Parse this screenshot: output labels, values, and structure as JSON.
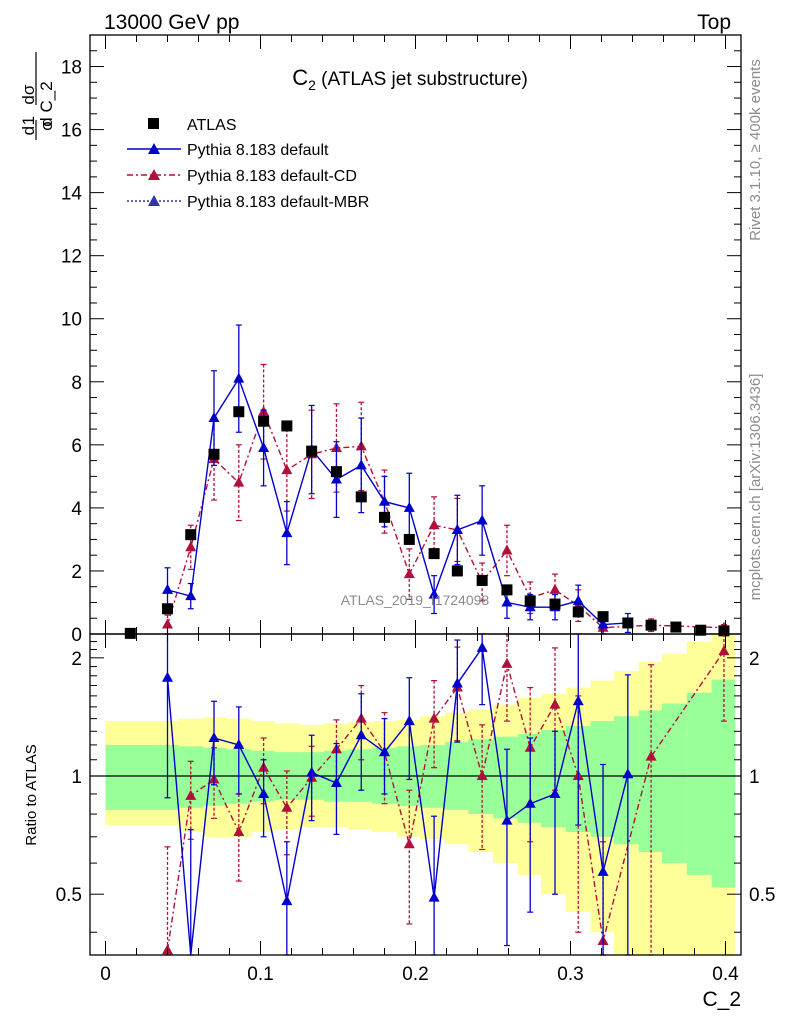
{
  "header": {
    "left": "13000 GeV pp",
    "right": "Top"
  },
  "side_labels": {
    "rivet": "Rivet 3.1.10, ≥ 400k events",
    "mcplots": "mcplots.cern.ch [arXiv:1306.3436]"
  },
  "chart_data": [
    {
      "type": "scatter",
      "title": "C₂ (ATLAS jet substructure)",
      "title_main": "C",
      "title_sub": "2",
      "title_rest": " (ATLAS jet substructure)",
      "ylabel": "1/σ dσ/d C_2",
      "watermark": "ATLAS_2019_I1724098",
      "xlim": [
        -0.01,
        0.41
      ],
      "ylim": [
        0,
        19
      ],
      "y_ticks": [
        0,
        2,
        4,
        6,
        8,
        10,
        12,
        14,
        16,
        18
      ],
      "y_tick_labels": [
        "0",
        "2",
        "4",
        "6",
        "8",
        "10",
        "12",
        "14",
        "16",
        "18"
      ],
      "legend_placement": "top-left",
      "series": [
        {
          "name": "ATLAS",
          "color": "#000000",
          "marker": "square",
          "x": [
            0.016,
            0.04,
            0.055,
            0.07,
            0.086,
            0.102,
            0.117,
            0.133,
            0.149,
            0.165,
            0.18,
            0.196,
            0.212,
            0.227,
            0.243,
            0.259,
            0.274,
            0.29,
            0.305,
            0.321,
            0.337,
            0.352,
            0.368,
            0.384,
            0.399
          ],
          "y": [
            0.02,
            0.8,
            3.15,
            5.7,
            7.05,
            6.75,
            6.6,
            5.8,
            5.15,
            4.35,
            3.7,
            3.0,
            2.55,
            2.0,
            1.7,
            1.4,
            1.05,
            0.95,
            0.7,
            0.55,
            0.35,
            0.28,
            0.22,
            0.12,
            0.1
          ]
        },
        {
          "name": "Pythia 8.183 default",
          "color": "#0000cc",
          "marker": "triangle",
          "line": "solid",
          "x": [
            0.04,
            0.055,
            0.07,
            0.086,
            0.102,
            0.117,
            0.133,
            0.149,
            0.165,
            0.18,
            0.196,
            0.212,
            0.227,
            0.243,
            0.259,
            0.274,
            0.29,
            0.305,
            0.321,
            0.337
          ],
          "y": [
            1.4,
            1.2,
            6.85,
            8.1,
            5.9,
            3.2,
            5.85,
            4.9,
            5.35,
            4.2,
            4.0,
            1.25,
            3.3,
            3.6,
            1.0,
            0.85,
            0.85,
            1.05,
            0.3,
            0.35
          ],
          "err": [
            0.7,
            0.4,
            1.5,
            1.7,
            1.2,
            1.0,
            1.4,
            1.2,
            1.5,
            0.8,
            1.1,
            0.6,
            1.1,
            1.1,
            0.5,
            0.4,
            0.4,
            0.5,
            0.3,
            0.3
          ]
        },
        {
          "name": "Pythia 8.183 default-CD",
          "color": "#b0103a",
          "marker": "triangle",
          "line": "dashdot",
          "x": [
            0.04,
            0.055,
            0.07,
            0.086,
            0.102,
            0.117,
            0.133,
            0.149,
            0.165,
            0.18,
            0.196,
            0.212,
            0.227,
            0.243,
            0.259,
            0.274,
            0.29,
            0.305,
            0.321,
            0.352,
            0.399
          ],
          "y": [
            0.3,
            2.75,
            5.55,
            4.8,
            7.05,
            5.2,
            5.7,
            5.9,
            5.95,
            4.2,
            1.9,
            3.45,
            3.3,
            1.65,
            2.65,
            1.15,
            1.4,
            0.9,
            0.2,
            0.28,
            0.2
          ],
          "err": [
            0.3,
            0.7,
            1.3,
            1.2,
            1.5,
            1.3,
            1.4,
            1.4,
            1.4,
            1.0,
            0.8,
            0.9,
            1.0,
            0.6,
            0.8,
            0.5,
            0.5,
            0.5,
            0.2,
            0.2,
            0.1
          ]
        },
        {
          "name": "Pythia 8.183 default-MBR",
          "color": "#3333aa",
          "marker": "triangle",
          "line": "dotted",
          "x": [],
          "y": []
        }
      ]
    },
    {
      "type": "scatter",
      "title": "",
      "xlabel": "C_2",
      "ylabel": "Ratio to ATLAS",
      "xlim": [
        -0.01,
        0.41
      ],
      "ylim": [
        0.35,
        2.3
      ],
      "x_ticks": [
        0,
        0.1,
        0.2,
        0.3,
        0.4
      ],
      "x_tick_labels": [
        "0",
        "0.1",
        "0.2",
        "0.3",
        "0.4"
      ],
      "y_ticks": [
        0.5,
        1,
        2
      ],
      "y_tick_labels": [
        "0.5",
        "1",
        "2"
      ],
      "reference_line": 1,
      "bands": {
        "edges": [
          0,
          0.031,
          0.047,
          0.063,
          0.078,
          0.094,
          0.109,
          0.125,
          0.141,
          0.156,
          0.172,
          0.188,
          0.203,
          0.219,
          0.234,
          0.25,
          0.266,
          0.281,
          0.297,
          0.313,
          0.328,
          0.344,
          0.359,
          0.375,
          0.391,
          0.406
        ],
        "green_color": "#99ff99",
        "yellow_color": "#ffff99",
        "green_lo": [
          0.82,
          0.82,
          0.83,
          0.84,
          0.85,
          0.86,
          0.87,
          0.87,
          0.86,
          0.86,
          0.85,
          0.84,
          0.83,
          0.82,
          0.8,
          0.78,
          0.76,
          0.74,
          0.72,
          0.7,
          0.67,
          0.64,
          0.6,
          0.56,
          0.52
        ],
        "green_hi": [
          1.2,
          1.2,
          1.19,
          1.18,
          1.17,
          1.16,
          1.15,
          1.15,
          1.16,
          1.17,
          1.18,
          1.19,
          1.2,
          1.22,
          1.24,
          1.26,
          1.28,
          1.31,
          1.34,
          1.38,
          1.42,
          1.47,
          1.53,
          1.63,
          1.76
        ],
        "yellow_lo": [
          0.75,
          0.75,
          0.72,
          0.7,
          0.7,
          0.72,
          0.73,
          0.74,
          0.74,
          0.73,
          0.72,
          0.7,
          0.69,
          0.67,
          0.64,
          0.6,
          0.56,
          0.5,
          0.45,
          0.4,
          0.35,
          0.35,
          0.35,
          0.35,
          0.35
        ],
        "yellow_hi": [
          1.38,
          1.38,
          1.4,
          1.41,
          1.4,
          1.38,
          1.36,
          1.35,
          1.36,
          1.37,
          1.38,
          1.39,
          1.42,
          1.45,
          1.48,
          1.52,
          1.58,
          1.62,
          1.68,
          1.75,
          1.85,
          1.95,
          2.05,
          2.2,
          2.3
        ]
      },
      "series": [
        {
          "name": "Pythia 8.183 default",
          "color": "#0000cc",
          "line": "solid",
          "x": [
            0.04,
            0.055,
            0.07,
            0.086,
            0.102,
            0.117,
            0.133,
            0.149,
            0.165,
            0.18,
            0.196,
            0.212,
            0.227,
            0.243,
            0.259,
            0.274,
            0.29,
            0.305,
            0.321,
            0.337
          ],
          "y": [
            1.78,
            0.33,
            1.25,
            1.2,
            0.9,
            0.48,
            1.02,
            0.96,
            1.27,
            1.15,
            1.38,
            0.49,
            1.72,
            2.12,
            0.77,
            0.85,
            0.9,
            1.55,
            0.57,
            1.01
          ],
          "err": [
            0.9,
            0.4,
            0.3,
            0.3,
            0.2,
            0.2,
            0.25,
            0.25,
            0.35,
            0.25,
            0.4,
            0.3,
            0.5,
            0.6,
            0.4,
            0.4,
            0.4,
            0.8,
            0.5,
            0.8
          ]
        },
        {
          "name": "Pythia 8.183 default-CD",
          "color": "#b0103a",
          "line": "dashdot",
          "x": [
            0.04,
            0.055,
            0.07,
            0.086,
            0.102,
            0.117,
            0.133,
            0.149,
            0.165,
            0.18,
            0.196,
            0.212,
            0.227,
            0.243,
            0.259,
            0.274,
            0.29,
            0.305,
            0.321,
            0.352,
            0.399
          ],
          "y": [
            0.36,
            0.89,
            0.98,
            0.72,
            1.05,
            0.83,
            0.99,
            1.17,
            1.4,
            1.15,
            0.67,
            1.4,
            1.68,
            1.0,
            1.93,
            1.18,
            1.52,
            1.0,
            0.38,
            1.12,
            2.08
          ],
          "err": [
            0.3,
            0.2,
            0.2,
            0.18,
            0.2,
            0.2,
            0.2,
            0.22,
            0.3,
            0.3,
            0.25,
            0.35,
            0.45,
            0.35,
            0.55,
            0.5,
            0.6,
            0.6,
            0.3,
            0.8,
            0.7
          ]
        }
      ]
    }
  ]
}
